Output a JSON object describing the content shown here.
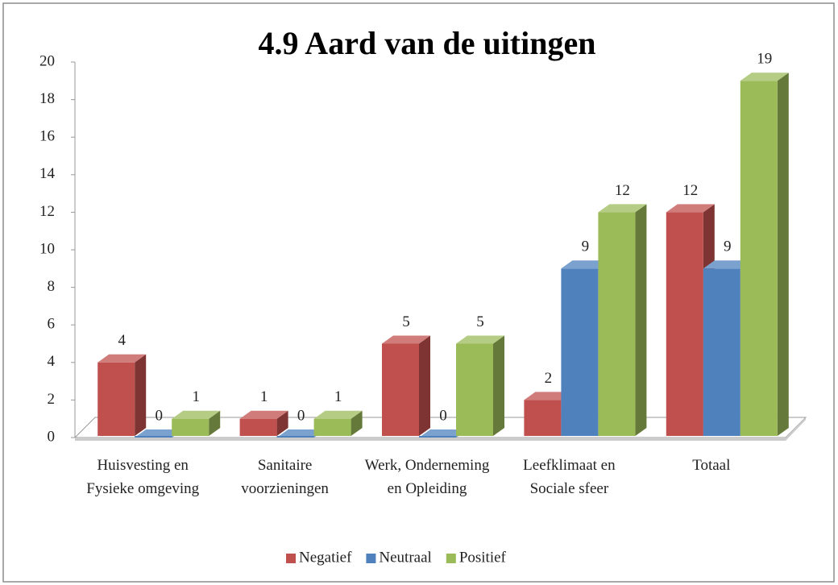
{
  "chart_data": {
    "type": "bar3d",
    "title": "4.9 Aard van de uitingen",
    "categories": [
      "Huisvesting en Fysieke omgeving",
      "Sanitaire voorzieningen",
      "Werk, Onderneming en Opleiding",
      "Leefklimaat en Sociale sfeer",
      "Totaal"
    ],
    "series": [
      {
        "name": "Negatief",
        "color": "#c0504d",
        "values": [
          4,
          1,
          5,
          2,
          12
        ]
      },
      {
        "name": "Neutraal",
        "color": "#4f81bd",
        "values": [
          0,
          0,
          0,
          9,
          9
        ]
      },
      {
        "name": "Positief",
        "color": "#9bbb59",
        "values": [
          1,
          1,
          5,
          12,
          19
        ]
      }
    ],
    "ylim": [
      0,
      20
    ],
    "yticks": [
      0,
      2,
      4,
      6,
      8,
      10,
      12,
      14,
      16,
      18,
      20
    ],
    "grid": false,
    "legend": "bottom"
  }
}
